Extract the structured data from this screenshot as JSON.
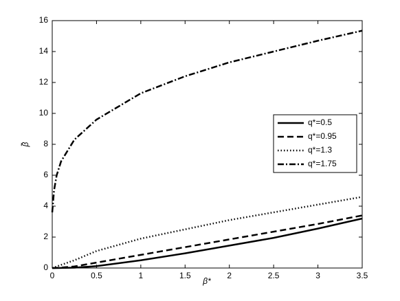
{
  "chart_data": {
    "type": "line",
    "xlabel": "β*",
    "ylabel": "β̃",
    "x": [
      0,
      0.02,
      0.05,
      0.1,
      0.25,
      0.5,
      1,
      1.5,
      2,
      2.5,
      3,
      3.5
    ],
    "series": [
      {
        "name": "q*=0.5",
        "color": "#000000",
        "style": "solid",
        "values": [
          0,
          0,
          0,
          0.005,
          0.02,
          0.12,
          0.5,
          0.95,
          1.45,
          1.95,
          2.55,
          3.2
        ]
      },
      {
        "name": "q*=0.95",
        "color": "#000000",
        "style": "dashed",
        "values": [
          0,
          0,
          0.01,
          0.03,
          0.1,
          0.35,
          0.85,
          1.35,
          1.85,
          2.35,
          2.85,
          3.4
        ]
      },
      {
        "name": "q*=1.3",
        "color": "#000000",
        "style": "dotted",
        "values": [
          0,
          0.03,
          0.1,
          0.2,
          0.5,
          1.1,
          1.9,
          2.5,
          3.1,
          3.6,
          4.1,
          4.6
        ]
      },
      {
        "name": "q*=1.75",
        "color": "#000000",
        "style": "dashdot",
        "values": [
          3.6,
          5,
          6,
          6.9,
          8.3,
          9.6,
          11.3,
          12.4,
          13.3,
          14.0,
          14.7,
          15.35
        ]
      }
    ],
    "xlim": [
      0,
      3.5
    ],
    "xticks": [
      0,
      0.5,
      1,
      1.5,
      2,
      2.5,
      3,
      3.5
    ],
    "ylim": [
      0,
      16
    ],
    "yticks": [
      0,
      2,
      4,
      6,
      8,
      10,
      12,
      14,
      16
    ],
    "legend": "right"
  }
}
